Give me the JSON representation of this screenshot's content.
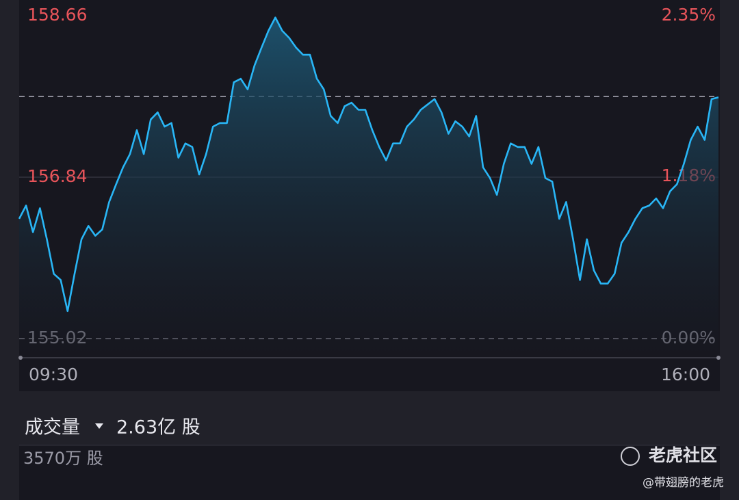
{
  "chart_data": {
    "type": "line",
    "categories": [
      "09:30",
      null,
      null,
      null,
      null,
      null,
      null,
      null,
      null,
      null,
      null,
      null,
      null,
      null,
      null,
      null,
      null,
      null,
      null,
      null,
      null,
      null,
      null,
      null,
      null,
      null,
      null,
      null,
      null,
      null,
      null,
      null,
      null,
      null,
      null,
      null,
      null,
      null,
      null,
      null,
      null,
      null,
      null,
      null,
      null,
      null,
      null,
      null,
      null,
      null,
      null,
      null,
      null,
      null,
      null,
      null,
      null,
      null,
      null,
      null,
      null,
      null,
      null,
      null,
      null,
      null,
      null,
      null,
      null,
      null,
      null,
      null,
      null,
      null,
      null,
      null,
      null,
      null,
      null,
      null,
      null,
      null,
      null,
      null,
      null,
      null,
      null,
      null,
      null,
      null,
      null,
      null,
      null,
      null,
      null,
      null,
      null,
      null,
      null,
      null,
      null,
      "16:00"
    ],
    "series": [
      {
        "color": "#29b6f6",
        "values": [
          156.37,
          156.52,
          156.22,
          156.49,
          156.14,
          155.75,
          155.68,
          155.33,
          155.75,
          156.14,
          156.29,
          156.18,
          156.25,
          156.56,
          156.76,
          156.95,
          157.1,
          157.37,
          157.1,
          157.49,
          157.57,
          157.41,
          157.45,
          157.06,
          157.22,
          157.18,
          156.87,
          157.1,
          157.41,
          157.45,
          157.45,
          157.91,
          157.95,
          157.83,
          158.1,
          158.3,
          158.49,
          158.64,
          158.49,
          158.41,
          158.3,
          158.22,
          158.22,
          157.95,
          157.83,
          157.53,
          157.45,
          157.64,
          157.68,
          157.6,
          157.6,
          157.37,
          157.18,
          157.03,
          157.22,
          157.22,
          157.41,
          157.49,
          157.6,
          157.66,
          157.72,
          157.57,
          157.33,
          157.47,
          157.41,
          157.3,
          157.53,
          156.95,
          156.83,
          156.64,
          156.99,
          157.22,
          157.18,
          157.18,
          156.99,
          157.18,
          156.83,
          156.79,
          156.37,
          156.56,
          156.14,
          155.68,
          156.14,
          155.79,
          155.64,
          155.64,
          155.75,
          156.1,
          156.22,
          156.37,
          156.49,
          156.52,
          156.6,
          156.49,
          156.68,
          156.76,
          156.99,
          157.26,
          157.41,
          157.26,
          157.72,
          157.74
        ]
      }
    ],
    "ylim": [
      155.02,
      158.66
    ],
    "yticks": [
      155.02,
      156.84,
      158.66
    ],
    "y2lim": [
      0,
      2.35
    ],
    "y2ticks": [
      {
        "value": 0,
        "label": "0.00%"
      },
      {
        "value": 1.18,
        "label": "1.18%"
      },
      {
        "value": 2.35,
        "label": "2.35%"
      }
    ],
    "reference_line": 157.75,
    "grid": true
  },
  "volume": {
    "label": "成交量",
    "total": "2.63亿 股",
    "max": "3570万 股"
  },
  "watermark": {
    "brand": "老虎社区",
    "author": "@带翅膀的老虎"
  }
}
